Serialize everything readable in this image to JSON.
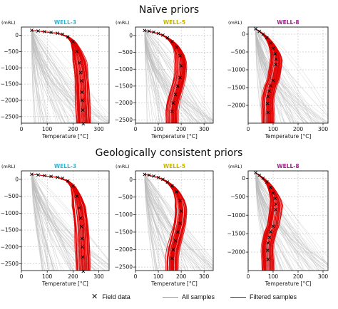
{
  "figure": {
    "section_titles": [
      "Naïve priors",
      "Geologically consistent priors"
    ]
  },
  "legend": {
    "field_data": "Field data",
    "all_samples": "All samples",
    "filtered_samples": "Filtered samples"
  },
  "colors": {
    "all_samples": "#bdbdbd",
    "filtered_samples": "#e00000",
    "field_data": "#000000",
    "well3": "#2bb5d6",
    "well5": "#c8b400",
    "well8": "#a6178f",
    "grid": "#b0b0b0"
  },
  "chart_data": [
    {
      "type": "line",
      "row": "Naïve priors",
      "title": "WELL-3",
      "xlabel": "Temperature [°C]",
      "ylabel": "(mRL)",
      "xlim": [
        0,
        340
      ],
      "ylim": [
        -2700,
        250
      ],
      "xticks": [
        0,
        100,
        200,
        300
      ],
      "yticks": [
        0,
        -500,
        -1000,
        -1500,
        -2000,
        -2500
      ],
      "grid": true,
      "series": [
        {
          "name": "Field data",
          "x": [
            40,
            65,
            90,
            115,
            140,
            160,
            180,
            200,
            215,
            225,
            230,
            233,
            235,
            236,
            238,
            240
          ],
          "y": [
            150,
            130,
            110,
            85,
            60,
            30,
            -50,
            -200,
            -500,
            -850,
            -1150,
            -1400,
            -1750,
            -2000,
            -2300,
            -2720
          ]
        }
      ]
    },
    {
      "type": "line",
      "row": "Naïve priors",
      "title": "WELL-5",
      "xlabel": "Temperature [°C]",
      "ylabel": "(mRL)",
      "xlim": [
        0,
        340
      ],
      "ylim": [
        -2600,
        250
      ],
      "xticks": [
        0,
        100,
        200,
        300
      ],
      "yticks": [
        0,
        -500,
        -1000,
        -1500,
        -2000,
        -2500
      ],
      "grid": true,
      "series": [
        {
          "name": "Field data",
          "x": [
            40,
            60,
            80,
            100,
            120,
            140,
            160,
            180,
            195,
            200,
            195,
            185,
            175,
            165,
            160
          ],
          "y": [
            150,
            130,
            100,
            60,
            10,
            -70,
            -180,
            -350,
            -600,
            -900,
            -1250,
            -1500,
            -1750,
            -2000,
            -2250
          ]
        }
      ]
    },
    {
      "type": "line",
      "row": "Naïve priors",
      "title": "WELL-8",
      "xlabel": "Temperature [°C]",
      "ylabel": "(mRL)",
      "xlim": [
        0,
        320
      ],
      "ylim": [
        -2500,
        200
      ],
      "xticks": [
        0,
        100,
        200,
        300
      ],
      "yticks": [
        0,
        -500,
        -1000,
        -1500,
        -2000
      ],
      "grid": true,
      "series": [
        {
          "name": "Field data",
          "x": [
            30,
            45,
            60,
            75,
            90,
            100,
            108,
            112,
            110,
            100,
            90,
            85,
            80,
            78,
            80
          ],
          "y": [
            150,
            80,
            0,
            -100,
            -250,
            -400,
            -550,
            -700,
            -850,
            -1300,
            -1450,
            -1600,
            -1750,
            -1950,
            -2200
          ]
        }
      ]
    },
    {
      "type": "line",
      "row": "Geologically consistent priors",
      "title": "WELL-3",
      "xlabel": "Temperature [°C]",
      "ylabel": "(mRL)",
      "xlim": [
        0,
        340
      ],
      "ylim": [
        -2700,
        250
      ],
      "xticks": [
        0,
        100,
        200,
        300
      ],
      "yticks": [
        0,
        -500,
        -1000,
        -1500,
        -2000,
        -2500
      ],
      "grid": true,
      "series": [
        {
          "name": "Field data",
          "x": [
            40,
            65,
            90,
            115,
            140,
            160,
            180,
            200,
            215,
            225,
            230,
            233,
            235,
            236,
            238,
            240
          ],
          "y": [
            150,
            130,
            110,
            85,
            60,
            30,
            -50,
            -200,
            -500,
            -850,
            -1150,
            -1400,
            -1750,
            -2000,
            -2300,
            -2720
          ]
        }
      ]
    },
    {
      "type": "line",
      "row": "Geologically consistent priors",
      "title": "WELL-5",
      "xlabel": "Temperature [°C]",
      "ylabel": "(mRL)",
      "xlim": [
        0,
        340
      ],
      "ylim": [
        -2600,
        250
      ],
      "xticks": [
        0,
        100,
        200,
        300
      ],
      "yticks": [
        0,
        -500,
        -1000,
        -1500,
        -2000,
        -2500
      ],
      "grid": true,
      "series": [
        {
          "name": "Field data",
          "x": [
            40,
            60,
            80,
            100,
            120,
            140,
            160,
            180,
            195,
            200,
            195,
            185,
            175,
            165,
            160
          ],
          "y": [
            150,
            130,
            100,
            60,
            10,
            -70,
            -180,
            -350,
            -600,
            -900,
            -1250,
            -1500,
            -1750,
            -2000,
            -2250
          ]
        }
      ]
    },
    {
      "type": "line",
      "row": "Geologically consistent priors",
      "title": "WELL-8",
      "xlabel": "Temperature [°C]",
      "ylabel": "(mRL)",
      "xlim": [
        0,
        320
      ],
      "ylim": [
        -2500,
        200
      ],
      "xticks": [
        0,
        100,
        200,
        300
      ],
      "yticks": [
        0,
        -500,
        -1000,
        -1500,
        -2000
      ],
      "grid": true,
      "series": [
        {
          "name": "Field data",
          "x": [
            30,
            45,
            60,
            75,
            90,
            100,
            108,
            112,
            110,
            100,
            90,
            85,
            80,
            78,
            80
          ],
          "y": [
            150,
            80,
            0,
            -100,
            -250,
            -400,
            -550,
            -700,
            -850,
            -1300,
            -1450,
            -1600,
            -1750,
            -1950,
            -2200
          ]
        }
      ]
    }
  ]
}
